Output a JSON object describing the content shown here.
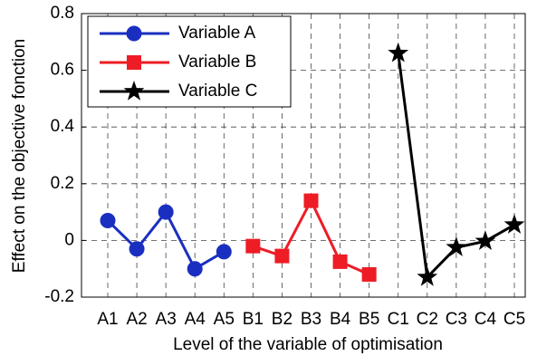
{
  "chart_data": {
    "type": "line",
    "xlabel": "Level of the variable of optimisation",
    "ylabel": "Effect on the  objective fonction",
    "categories": [
      "A1",
      "A2",
      "A3",
      "A4",
      "A5",
      "B1",
      "B2",
      "B3",
      "B4",
      "B5",
      "C1",
      "C2",
      "C3",
      "C4",
      "C5"
    ],
    "series": [
      {
        "name": "Variable A",
        "color": "#1a2fc0",
        "marker": "circle",
        "values": [
          0.07,
          -0.03,
          0.1,
          -0.1,
          -0.04,
          null,
          null,
          null,
          null,
          null,
          null,
          null,
          null,
          null,
          null
        ]
      },
      {
        "name": "Variable B",
        "color": "#ee1c25",
        "marker": "square",
        "values": [
          null,
          null,
          null,
          null,
          null,
          -0.02,
          -0.055,
          0.14,
          -0.075,
          -0.12,
          null,
          null,
          null,
          null,
          null
        ]
      },
      {
        "name": "Variable C",
        "color": "#000000",
        "marker": "star",
        "values": [
          null,
          null,
          null,
          null,
          null,
          null,
          null,
          null,
          null,
          null,
          0.66,
          -0.13,
          -0.025,
          -0.003,
          0.055
        ]
      }
    ],
    "ylim": [
      -0.2,
      0.8
    ],
    "yticks": [
      -0.2,
      0,
      0.2,
      0.4,
      0.6,
      0.8
    ],
    "grid": true,
    "legend": "upper left"
  }
}
